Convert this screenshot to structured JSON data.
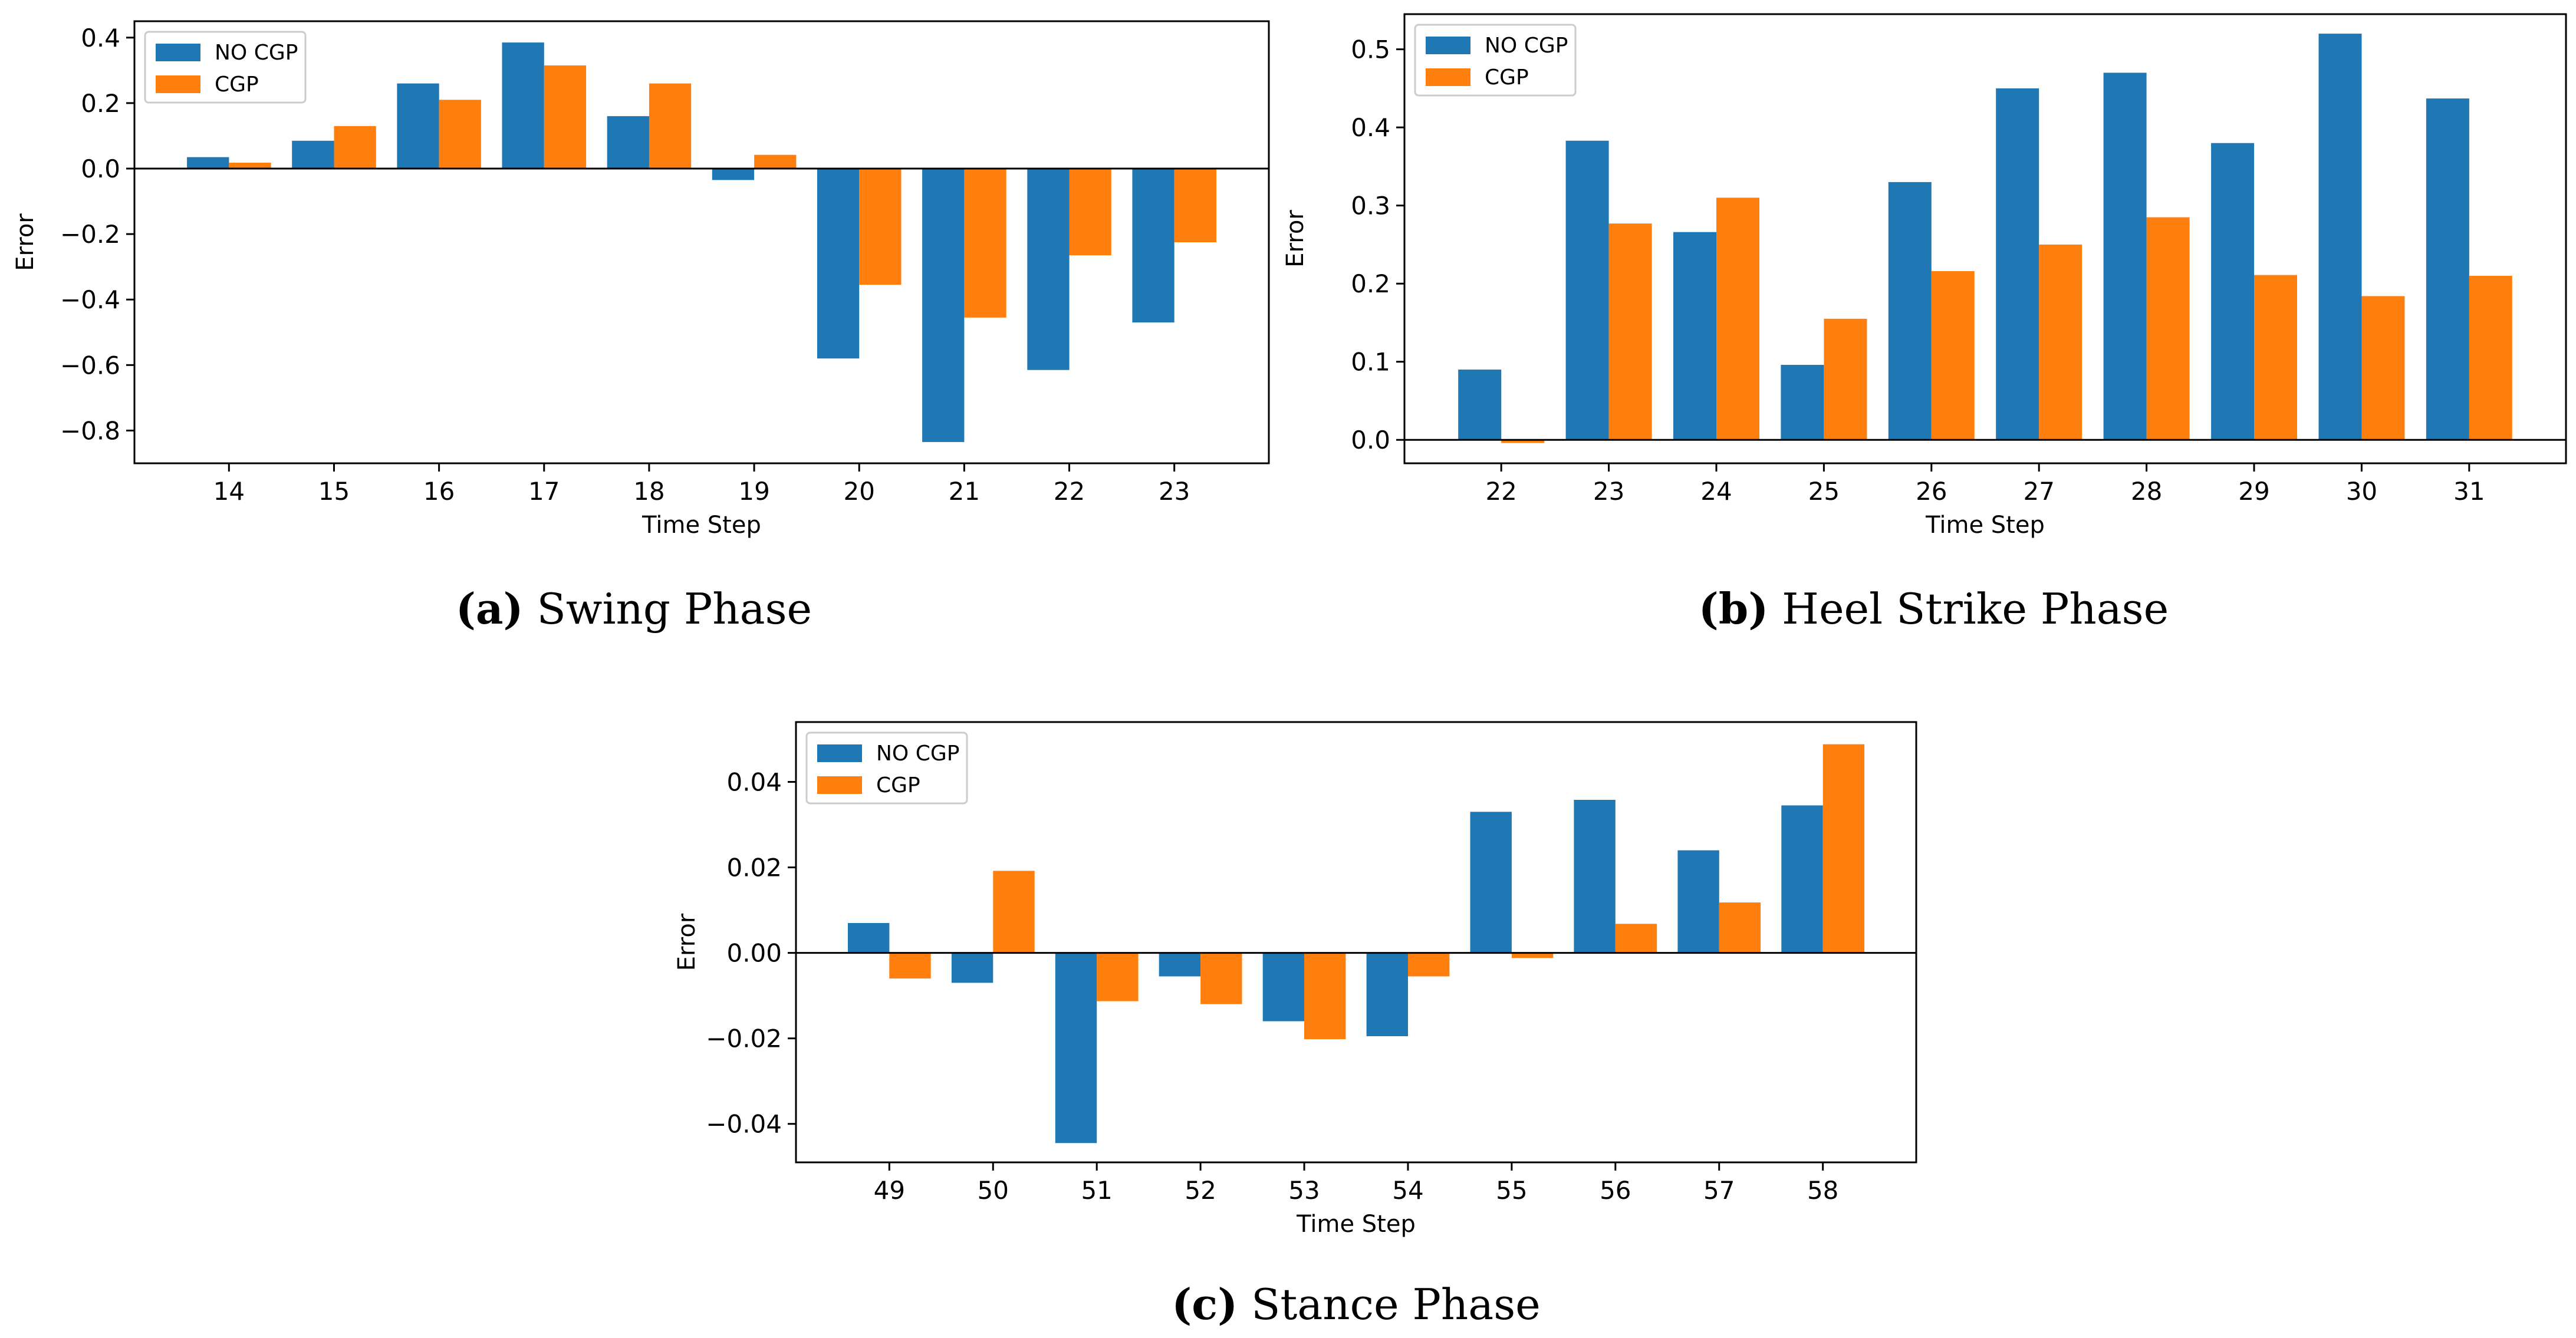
{
  "colors": {
    "no_cgp": "#1f77b4",
    "cgp": "#ff7f0e",
    "axis": "#000000"
  },
  "chart_data": [
    {
      "type": "bar",
      "caption_tag": "(a)",
      "caption_text": "Swing Phase",
      "xlabel": "Time Step",
      "ylabel": "Error",
      "categories": [
        "14",
        "15",
        "16",
        "17",
        "18",
        "19",
        "20",
        "21",
        "22",
        "23"
      ],
      "series": [
        {
          "name": "NO CGP",
          "values": [
            0.035,
            0.085,
            0.26,
            0.385,
            0.16,
            -0.035,
            -0.58,
            -0.835,
            -0.615,
            -0.47
          ]
        },
        {
          "name": "CGP",
          "values": [
            0.018,
            0.13,
            0.21,
            0.315,
            0.26,
            0.042,
            -0.355,
            -0.455,
            -0.265,
            -0.225
          ]
        }
      ],
      "ylim": [
        -0.9,
        0.45
      ],
      "yticks": [
        0.4,
        0.2,
        0.0,
        -0.2,
        -0.4,
        -0.6,
        -0.8
      ],
      "ytick_labels": [
        "0.4",
        "0.2",
        "0.0",
        "−0.2",
        "−0.4",
        "−0.6",
        "−0.8"
      ],
      "legend": "top-left",
      "grid": false
    },
    {
      "type": "bar",
      "caption_tag": "(b)",
      "caption_text": "Heel Strike Phase",
      "xlabel": "Time Step",
      "ylabel": "Error",
      "categories": [
        "22",
        "23",
        "24",
        "25",
        "26",
        "27",
        "28",
        "29",
        "30",
        "31"
      ],
      "series": [
        {
          "name": "NO CGP",
          "values": [
            0.09,
            0.383,
            0.266,
            0.096,
            0.33,
            0.45,
            0.47,
            0.38,
            0.52,
            0.437
          ]
        },
        {
          "name": "CGP",
          "values": [
            -0.004,
            0.277,
            0.31,
            0.155,
            0.216,
            0.25,
            0.285,
            0.211,
            0.184,
            0.21
          ]
        }
      ],
      "ylim": [
        -0.03,
        0.545
      ],
      "yticks": [
        0.5,
        0.4,
        0.3,
        0.2,
        0.1,
        0.0
      ],
      "ytick_labels": [
        "0.5",
        "0.4",
        "0.3",
        "0.2",
        "0.1",
        "0.0"
      ],
      "legend": "top-left",
      "grid": false
    },
    {
      "type": "bar",
      "caption_tag": "(c)",
      "caption_text": "Stance Phase",
      "xlabel": "Time Step",
      "ylabel": "Error",
      "categories": [
        "49",
        "50",
        "51",
        "52",
        "53",
        "54",
        "55",
        "56",
        "57",
        "58"
      ],
      "series": [
        {
          "name": "NO CGP",
          "values": [
            0.007,
            -0.007,
            -0.0445,
            -0.0055,
            -0.016,
            -0.0195,
            0.033,
            0.0358,
            0.024,
            0.0345
          ]
        },
        {
          "name": "CGP",
          "values": [
            -0.006,
            0.0192,
            -0.0113,
            -0.012,
            -0.0202,
            -0.0055,
            -0.0012,
            0.0068,
            0.0118,
            0.0488
          ]
        }
      ],
      "ylim": [
        -0.049,
        0.054
      ],
      "yticks": [
        0.04,
        0.02,
        0.0,
        -0.02,
        -0.04
      ],
      "ytick_labels": [
        "0.04",
        "0.02",
        "0.00",
        "−0.02",
        "−0.04"
      ],
      "legend": "top-left",
      "grid": false
    }
  ]
}
